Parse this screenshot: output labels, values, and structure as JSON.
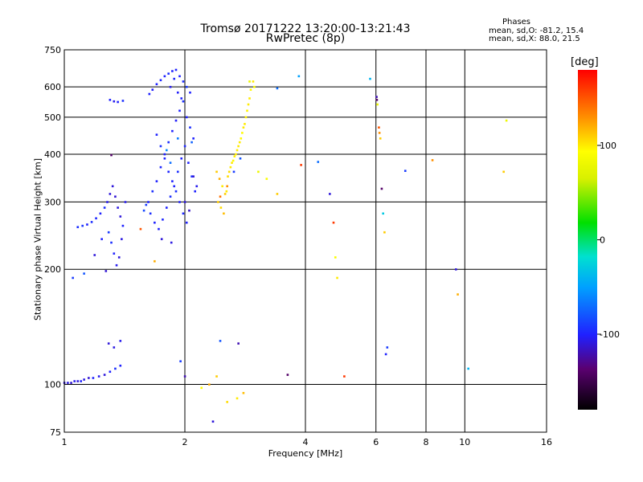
{
  "chart_data": {
    "type": "scatter",
    "title": "Tromsø 20171222 13:20:00-13:21:43",
    "subtitle": "RwPretec (8p)",
    "xlabel": "Frequency [MHz]",
    "ylabel": "Stationary phase Virtual Height [km]",
    "x_scale": "log",
    "y_scale": "log",
    "xlim": [
      1,
      16
    ],
    "ylim": [
      75,
      750
    ],
    "x_ticks": [
      1,
      2,
      4,
      6,
      8,
      10,
      16
    ],
    "y_ticks": [
      75,
      100,
      200,
      300,
      400,
      500,
      600,
      750
    ],
    "grid": true,
    "stats": {
      "title": "Phases",
      "o_mode": "mean, sd,O: -81.2, 15.4",
      "x_mode": "mean, sd,X:  88.0, 21.5"
    },
    "colorbar": {
      "label": "[deg]",
      "ticks": [
        100,
        0,
        -100
      ],
      "range": [
        -180,
        180
      ]
    },
    "points": [
      [
        1.0,
        101,
        -110
      ],
      [
        1.02,
        101,
        -108
      ],
      [
        1.04,
        101,
        -112
      ],
      [
        1.06,
        102,
        -105
      ],
      [
        1.08,
        102,
        -110
      ],
      [
        1.1,
        102,
        -100
      ],
      [
        1.12,
        103,
        -108
      ],
      [
        1.15,
        104,
        -112
      ],
      [
        1.18,
        104,
        -100
      ],
      [
        1.22,
        105,
        -105
      ],
      [
        1.26,
        106,
        -110
      ],
      [
        1.3,
        108,
        -100
      ],
      [
        1.34,
        110,
        -95
      ],
      [
        1.38,
        112,
        -100
      ],
      [
        1.08,
        258,
        -95
      ],
      [
        1.11,
        260,
        -92
      ],
      [
        1.14,
        262,
        -100
      ],
      [
        1.17,
        266,
        -95
      ],
      [
        1.2,
        272,
        -98
      ],
      [
        1.23,
        280,
        -100
      ],
      [
        1.26,
        290,
        -95
      ],
      [
        1.28,
        300,
        -105
      ],
      [
        1.3,
        315,
        -110
      ],
      [
        1.32,
        330,
        -110
      ],
      [
        1.34,
        310,
        -112
      ],
      [
        1.36,
        290,
        -108
      ],
      [
        1.38,
        275,
        -110
      ],
      [
        1.4,
        260,
        -100
      ],
      [
        1.42,
        300,
        -105
      ],
      [
        1.29,
        250,
        -90
      ],
      [
        1.31,
        235,
        -95
      ],
      [
        1.33,
        220,
        -100
      ],
      [
        1.35,
        205,
        -105
      ],
      [
        1.37,
        215,
        -110
      ],
      [
        1.39,
        240,
        -108
      ],
      [
        1.27,
        198,
        -112
      ],
      [
        1.3,
        555,
        -100
      ],
      [
        1.33,
        550,
        -105
      ],
      [
        1.36,
        548,
        -100
      ],
      [
        1.4,
        552,
        -95
      ],
      [
        1.29,
        128,
        -110
      ],
      [
        1.33,
        125,
        -108
      ],
      [
        1.38,
        130,
        -105
      ],
      [
        1.19,
        218,
        -110
      ],
      [
        1.24,
        240,
        -100
      ],
      [
        1.05,
        190,
        -90
      ],
      [
        1.12,
        195,
        -80
      ],
      [
        1.31,
        398,
        -140
      ],
      [
        1.63,
        575,
        -100
      ],
      [
        1.66,
        590,
        -102
      ],
      [
        1.7,
        610,
        -100
      ],
      [
        1.74,
        625,
        -98
      ],
      [
        1.78,
        640,
        -100
      ],
      [
        1.82,
        650,
        -95
      ],
      [
        1.86,
        660,
        -100
      ],
      [
        1.9,
        665,
        -100
      ],
      [
        1.94,
        640,
        -100
      ],
      [
        1.98,
        620,
        -95
      ],
      [
        2.02,
        600,
        -90
      ],
      [
        2.06,
        580,
        -100
      ],
      [
        1.62,
        300,
        -100
      ],
      [
        1.66,
        320,
        -95
      ],
      [
        1.7,
        340,
        -100
      ],
      [
        1.74,
        370,
        -98
      ],
      [
        1.78,
        400,
        -100
      ],
      [
        1.82,
        430,
        -95
      ],
      [
        1.86,
        460,
        -100
      ],
      [
        1.9,
        490,
        -102
      ],
      [
        1.94,
        520,
        -100
      ],
      [
        1.98,
        550,
        -95
      ],
      [
        2.02,
        500,
        -100
      ],
      [
        2.06,
        470,
        -95
      ],
      [
        2.1,
        440,
        -100
      ],
      [
        1.64,
        280,
        -95
      ],
      [
        1.68,
        265,
        -100
      ],
      [
        1.72,
        255,
        -100
      ],
      [
        1.76,
        270,
        -98
      ],
      [
        1.8,
        290,
        -100
      ],
      [
        1.84,
        310,
        -95
      ],
      [
        1.88,
        330,
        -100
      ],
      [
        1.92,
        360,
        -95
      ],
      [
        1.96,
        390,
        -100
      ],
      [
        2.0,
        420,
        -98
      ],
      [
        2.04,
        380,
        -100
      ],
      [
        2.08,
        350,
        -95
      ],
      [
        2.12,
        320,
        -100
      ],
      [
        1.75,
        240,
        -110
      ],
      [
        1.85,
        235,
        -108
      ],
      [
        2.0,
        300,
        -110
      ],
      [
        2.05,
        285,
        -115
      ],
      [
        1.8,
        410,
        -60
      ],
      [
        1.84,
        380,
        -70
      ],
      [
        1.92,
        440,
        -65
      ],
      [
        2.08,
        430,
        -75
      ],
      [
        1.6,
        295,
        -90
      ],
      [
        1.58,
        285,
        -85
      ],
      [
        1.55,
        255,
        150
      ],
      [
        1.68,
        210,
        120
      ],
      [
        2.1,
        350,
        -110
      ],
      [
        2.14,
        330,
        -105
      ],
      [
        2.4,
        360,
        110
      ],
      [
        2.44,
        345,
        120
      ],
      [
        2.48,
        330,
        100
      ],
      [
        2.52,
        315,
        110
      ],
      [
        2.56,
        350,
        105
      ],
      [
        2.6,
        370,
        100
      ],
      [
        2.64,
        385,
        95
      ],
      [
        2.68,
        400,
        100
      ],
      [
        2.72,
        420,
        100
      ],
      [
        2.76,
        440,
        95
      ],
      [
        2.8,
        470,
        100
      ],
      [
        2.84,
        500,
        98
      ],
      [
        2.88,
        540,
        100
      ],
      [
        2.92,
        590,
        95
      ],
      [
        2.96,
        620,
        100
      ],
      [
        2.42,
        300,
        110
      ],
      [
        2.46,
        290,
        105
      ],
      [
        2.5,
        280,
        115
      ],
      [
        2.54,
        320,
        100
      ],
      [
        2.58,
        360,
        105
      ],
      [
        2.62,
        380,
        100
      ],
      [
        2.66,
        395,
        98
      ],
      [
        2.7,
        410,
        100
      ],
      [
        2.74,
        430,
        100
      ],
      [
        2.78,
        455,
        95
      ],
      [
        2.82,
        480,
        100
      ],
      [
        2.86,
        520,
        98
      ],
      [
        2.9,
        560,
        100
      ],
      [
        2.45,
        310,
        140
      ],
      [
        2.55,
        330,
        130
      ],
      [
        2.65,
        360,
        -90
      ],
      [
        2.75,
        390,
        -80
      ],
      [
        2.9,
        620,
        80
      ],
      [
        2.98,
        600,
        90
      ],
      [
        3.05,
        360,
        80
      ],
      [
        3.2,
        345,
        90
      ],
      [
        3.4,
        315,
        110
      ],
      [
        2.3,
        100,
        120
      ],
      [
        2.4,
        105,
        110
      ],
      [
        2.55,
        90,
        105
      ],
      [
        2.7,
        92,
        100
      ],
      [
        2.8,
        95,
        115
      ],
      [
        2.2,
        98,
        95
      ],
      [
        2.35,
        80,
        -110
      ],
      [
        2.45,
        130,
        -80
      ],
      [
        2.72,
        128,
        -120
      ],
      [
        3.61,
        106,
        -140
      ],
      [
        3.4,
        595,
        -70
      ],
      [
        3.85,
        640,
        -50
      ],
      [
        3.9,
        375,
        160
      ],
      [
        4.3,
        382,
        -70
      ],
      [
        4.6,
        315,
        -110
      ],
      [
        4.7,
        265,
        160
      ],
      [
        4.75,
        215,
        90
      ],
      [
        4.8,
        190,
        100
      ],
      [
        5.8,
        630,
        -40
      ],
      [
        6.02,
        565,
        -120
      ],
      [
        6.03,
        555,
        -140
      ],
      [
        6.05,
        540,
        80
      ],
      [
        6.1,
        470,
        150
      ],
      [
        6.12,
        455,
        130
      ],
      [
        6.15,
        440,
        110
      ],
      [
        6.2,
        325,
        -140
      ],
      [
        6.25,
        280,
        -30
      ],
      [
        6.3,
        250,
        110
      ],
      [
        6.35,
        120,
        -100
      ],
      [
        6.4,
        125,
        -90
      ],
      [
        7.1,
        362,
        -90
      ],
      [
        8.3,
        386,
        130
      ],
      [
        9.5,
        200,
        -110
      ],
      [
        9.6,
        172,
        120
      ],
      [
        10.2,
        110,
        -40
      ],
      [
        12.5,
        360,
        110
      ],
      [
        12.7,
        490,
        80
      ],
      [
        5.0,
        105,
        160
      ],
      [
        1.95,
        115,
        -90
      ],
      [
        2.0,
        105,
        -120
      ],
      [
        1.84,
        600,
        -105
      ],
      [
        1.88,
        630,
        -98
      ],
      [
        1.92,
        580,
        -102
      ],
      [
        1.96,
        560,
        -100
      ],
      [
        1.7,
        450,
        -100
      ],
      [
        1.74,
        420,
        -95
      ],
      [
        1.78,
        390,
        -100
      ],
      [
        1.82,
        360,
        -98
      ],
      [
        1.86,
        340,
        -100
      ],
      [
        1.9,
        320,
        -95
      ],
      [
        1.94,
        300,
        -100
      ],
      [
        1.98,
        280,
        -98
      ],
      [
        2.02,
        265,
        -100
      ]
    ]
  }
}
